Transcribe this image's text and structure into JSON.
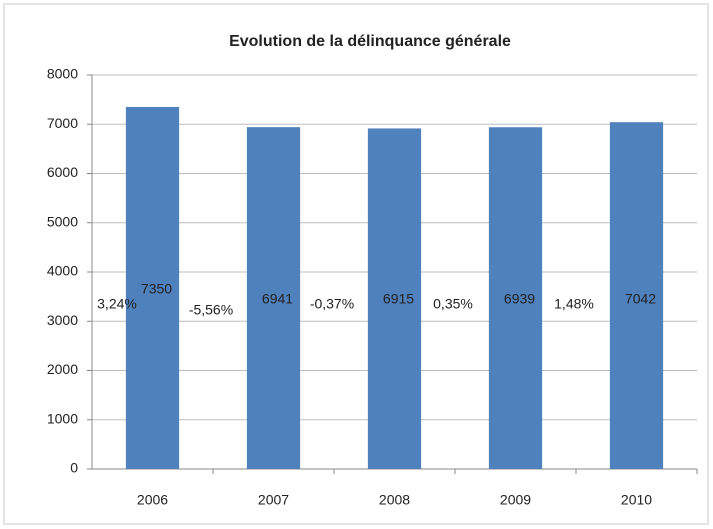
{
  "chart_data": {
    "type": "bar",
    "title": "Evolution de la délinquance générale",
    "categories": [
      "2006",
      "2007",
      "2008",
      "2009",
      "2010"
    ],
    "values": [
      7350,
      6941,
      6915,
      6939,
      7042
    ],
    "annotations": [
      "3,24%",
      "-5,56%",
      "-0,37%",
      "0,35%",
      "1,48%"
    ],
    "color": "#4f81bd",
    "ylim": [
      0,
      8000
    ],
    "yticks": [
      0,
      1000,
      2000,
      3000,
      4000,
      5000,
      6000,
      7000,
      8000
    ],
    "grid": true
  }
}
